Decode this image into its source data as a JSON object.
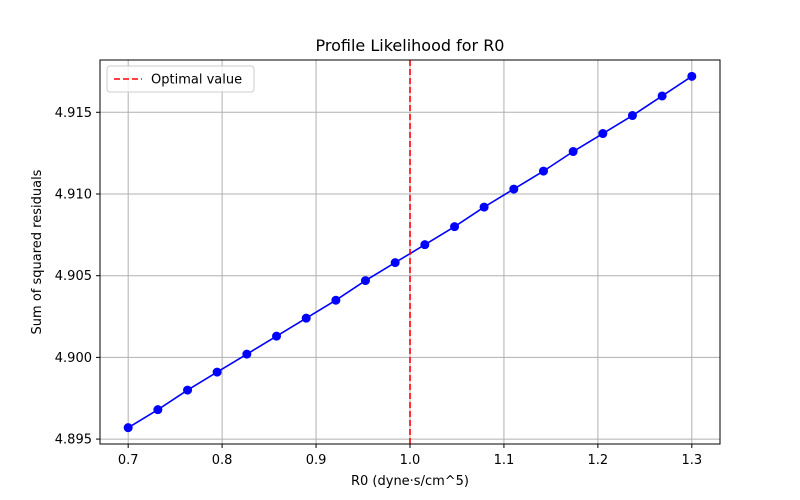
{
  "chart_data": {
    "type": "line",
    "title": "Profile Likelihood for R0",
    "xlabel": "R0 (dyne·s/cm^5)",
    "ylabel": "Sum of squared residuals",
    "xlim": [
      0.67,
      1.33
    ],
    "ylim": [
      4.8947,
      4.9182
    ],
    "x_ticks": [
      0.7,
      0.8,
      0.9,
      1.0,
      1.1,
      1.2,
      1.3
    ],
    "x_tick_labels": [
      "0.7",
      "0.8",
      "0.9",
      "1.0",
      "1.1",
      "1.2",
      "1.3"
    ],
    "y_ticks": [
      4.895,
      4.9,
      4.905,
      4.91,
      4.915
    ],
    "y_tick_labels": [
      "4.895",
      "4.900",
      "4.905",
      "4.910",
      "4.915"
    ],
    "grid": true,
    "legend_position": "top-left",
    "series": [
      {
        "color": "#0000ff",
        "marker": "circle",
        "x": [
          0.7,
          0.7316,
          0.7632,
          0.7947,
          0.8263,
          0.8579,
          0.8895,
          0.9211,
          0.9526,
          0.9842,
          1.0158,
          1.0474,
          1.0789,
          1.1105,
          1.1421,
          1.1737,
          1.2053,
          1.2368,
          1.2684,
          1.3
        ],
        "values": [
          4.8957,
          4.8968,
          4.898,
          4.8991,
          4.9002,
          4.9013,
          4.9024,
          4.9035,
          4.9047,
          4.9058,
          4.9069,
          4.908,
          4.9092,
          4.9103,
          4.9114,
          4.9126,
          4.9137,
          4.9148,
          4.916,
          4.9172
        ]
      }
    ],
    "vline": {
      "x": 1.0,
      "name": "Optimal value",
      "color": "#ff0000"
    }
  }
}
